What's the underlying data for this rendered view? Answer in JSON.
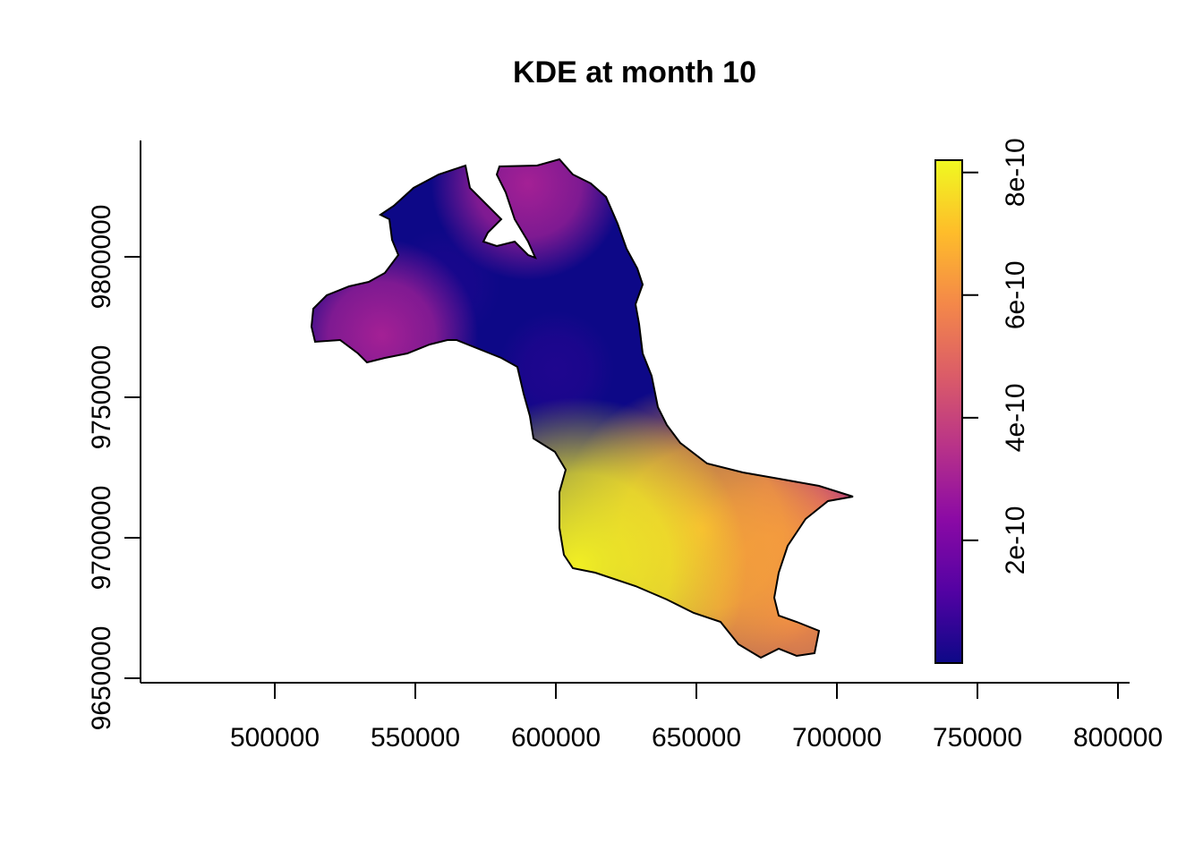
{
  "chart_data": {
    "type": "heatmap",
    "title": "KDE at month 10",
    "xlabel": "",
    "ylabel": "",
    "xlim": [
      450000,
      800000
    ],
    "ylim": [
      9650000,
      9840000
    ],
    "x_ticks": [
      {
        "value": 500000,
        "label": "500000"
      },
      {
        "value": 550000,
        "label": "550000"
      },
      {
        "value": 600000,
        "label": "600000"
      },
      {
        "value": 650000,
        "label": "650000"
      },
      {
        "value": 700000,
        "label": "700000"
      },
      {
        "value": 750000,
        "label": "750000"
      },
      {
        "value": 800000,
        "label": "800000"
      }
    ],
    "y_ticks": [
      {
        "value": 9650000,
        "label": "9650000"
      },
      {
        "value": 9700000,
        "label": "9700000"
      },
      {
        "value": 9750000,
        "label": "9750000"
      },
      {
        "value": 9800000,
        "label": "9800000"
      }
    ],
    "colorbar": {
      "palette": "plasma",
      "range": [
        0,
        8.2e-10
      ],
      "colors": [
        "#0d0887",
        "#5302a3",
        "#8b0aa5",
        "#b83289",
        "#db5c68",
        "#f48849",
        "#febd2a",
        "#f0f921"
      ],
      "ticks": [
        {
          "value": 2e-10,
          "label": "2e-10"
        },
        {
          "value": 4e-10,
          "label": "4e-10"
        },
        {
          "value": 6e-10,
          "label": "6e-10"
        },
        {
          "value": 8e-10,
          "label": "8e-10"
        }
      ]
    },
    "density_hotspots": [
      {
        "x": 608000,
        "y": 9690000,
        "density": 8e-10
      },
      {
        "x": 652000,
        "y": 9703000,
        "density": 6.5e-10
      },
      {
        "x": 685000,
        "y": 9675000,
        "density": 6e-10
      },
      {
        "x": 695000,
        "y": 9712000,
        "density": 4e-10
      },
      {
        "x": 538000,
        "y": 9772000,
        "density": 3e-10
      },
      {
        "x": 590000,
        "y": 9826000,
        "density": 3e-10
      },
      {
        "x": 560000,
        "y": 9790000,
        "density": 2e-11
      },
      {
        "x": 600000,
        "y": 9760000,
        "density": 3e-11
      }
    ]
  }
}
